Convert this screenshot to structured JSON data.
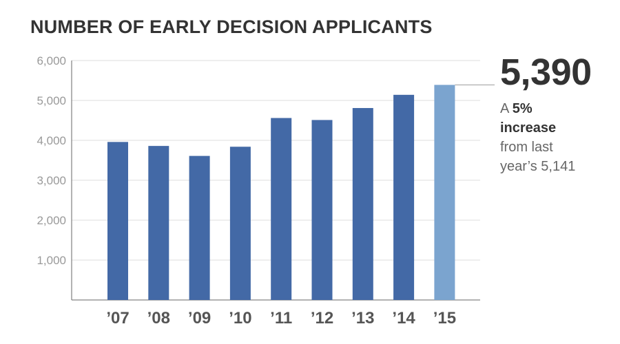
{
  "chart_data": {
    "type": "bar",
    "title": "NUMBER OF EARLY DECISION APPLICANTS",
    "xlabel": "",
    "ylabel": "",
    "categories": [
      "’07",
      "’08",
      "’09",
      "’10",
      "’11",
      "’12",
      "’13",
      "’14",
      "’15"
    ],
    "values": [
      3960,
      3860,
      3610,
      3840,
      4560,
      4510,
      4810,
      5141,
      5390
    ],
    "highlight_index": 8,
    "ylim": [
      0,
      6000
    ],
    "yticks": [
      1000,
      2000,
      3000,
      4000,
      5000,
      6000
    ],
    "ytick_labels": [
      "1,000",
      "2,000",
      "3,000",
      "4,000",
      "5,000",
      "6,000"
    ],
    "grid": true,
    "colors": {
      "bar": "#4369a6",
      "highlight": "#7ba4cf",
      "grid": "#dddddd",
      "axis": "#666666",
      "tick_text": "#999999",
      "category_text": "#555555"
    }
  },
  "callout": {
    "value": "5,390",
    "line1_prefix": "A ",
    "percent": "5%",
    "line2": "increase",
    "line3": "from last",
    "line4": "year’s 5,141"
  }
}
